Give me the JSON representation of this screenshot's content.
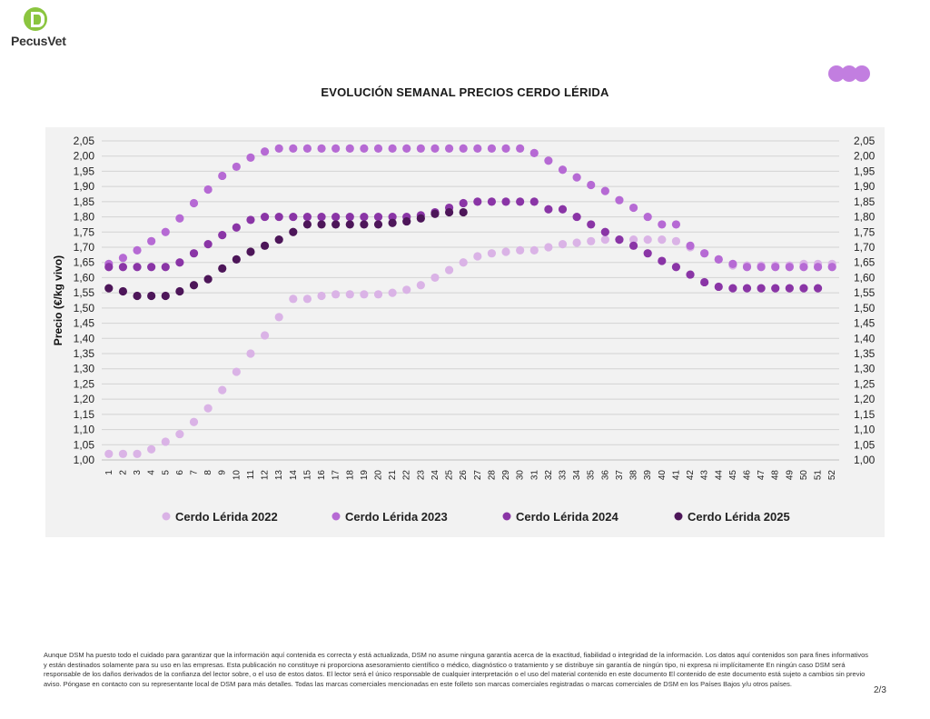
{
  "header": {
    "logo_text": "PecusVet",
    "logo_icon": "pecusvet-logo-icon"
  },
  "colors": {
    "c2022": "#dab3e6",
    "c2023": "#b66ad4",
    "c2024": "#8a35a6",
    "c2025": "#4d1659",
    "decor": "#c27ee0"
  },
  "chart_data": {
    "type": "scatter",
    "title": "EVOLUCIÓN SEMANAL PRECIOS CERDO LÉRIDA",
    "ylabel": "Precio (€/kg vivo)",
    "xlabel": "",
    "ylim": [
      1.0,
      2.05
    ],
    "ytick_step": 0.05,
    "grid": true,
    "legend_position": "bottom",
    "x": [
      1,
      2,
      3,
      4,
      5,
      6,
      7,
      8,
      9,
      10,
      11,
      12,
      13,
      14,
      15,
      16,
      17,
      18,
      19,
      20,
      21,
      22,
      23,
      24,
      25,
      26,
      27,
      28,
      29,
      30,
      31,
      32,
      33,
      34,
      35,
      36,
      37,
      38,
      39,
      40,
      41,
      42,
      43,
      44,
      45,
      46,
      47,
      48,
      49,
      50,
      51,
      52
    ],
    "yticks": [
      "1,00",
      "1,05",
      "1,10",
      "1,15",
      "1,20",
      "1,25",
      "1,30",
      "1,35",
      "1,40",
      "1,45",
      "1,50",
      "1,55",
      "1,60",
      "1,65",
      "1,70",
      "1,75",
      "1,80",
      "1,85",
      "1,90",
      "1,95",
      "2,00",
      "2,05"
    ],
    "xticks": [
      "1",
      "2",
      "3",
      "4",
      "5",
      "6",
      "7",
      "8",
      "9",
      "10",
      "11",
      "12",
      "13",
      "14",
      "15",
      "16",
      "17",
      "18",
      "19",
      "20",
      "21",
      "22",
      "23",
      "24",
      "25",
      "26",
      "27",
      "28",
      "29",
      "30",
      "31",
      "32",
      "33",
      "34",
      "35",
      "36",
      "37",
      "38",
      "39",
      "40",
      "41",
      "42",
      "43",
      "44",
      "45",
      "46",
      "47",
      "48",
      "49",
      "50",
      "51",
      "52"
    ],
    "series": [
      {
        "name": "Cerdo Lérida 2022",
        "values": [
          1.02,
          1.02,
          1.02,
          1.035,
          1.06,
          1.085,
          1.125,
          1.17,
          1.23,
          1.29,
          1.35,
          1.41,
          1.47,
          1.53,
          1.53,
          1.54,
          1.545,
          1.545,
          1.545,
          1.545,
          1.55,
          1.56,
          1.575,
          1.6,
          1.625,
          1.65,
          1.67,
          1.68,
          1.685,
          1.69,
          1.69,
          1.7,
          1.71,
          1.715,
          1.72,
          1.725,
          1.725,
          1.725,
          1.725,
          1.725,
          1.72,
          1.7,
          1.68,
          1.66,
          1.64,
          1.64,
          1.64,
          1.64,
          1.64,
          1.645,
          1.645,
          1.645
        ]
      },
      {
        "name": "Cerdo Lérida 2023",
        "values": [
          1.645,
          1.665,
          1.69,
          1.72,
          1.75,
          1.795,
          1.845,
          1.89,
          1.935,
          1.965,
          1.995,
          2.015,
          2.025,
          2.025,
          2.025,
          2.025,
          2.025,
          2.025,
          2.025,
          2.025,
          2.025,
          2.025,
          2.025,
          2.025,
          2.025,
          2.025,
          2.025,
          2.025,
          2.025,
          2.025,
          2.01,
          1.985,
          1.955,
          1.93,
          1.905,
          1.885,
          1.855,
          1.83,
          1.8,
          1.775,
          1.775,
          1.705,
          1.68,
          1.66,
          1.645,
          1.635,
          1.635,
          1.635,
          1.635,
          1.635,
          1.635,
          1.635
        ]
      },
      {
        "name": "Cerdo Lérida 2024",
        "values": [
          1.635,
          1.635,
          1.635,
          1.635,
          1.635,
          1.65,
          1.68,
          1.71,
          1.74,
          1.765,
          1.79,
          1.8,
          1.8,
          1.8,
          1.8,
          1.8,
          1.8,
          1.8,
          1.8,
          1.8,
          1.8,
          1.8,
          1.805,
          1.815,
          1.83,
          1.845,
          1.85,
          1.85,
          1.85,
          1.85,
          1.85,
          1.825,
          1.825,
          1.8,
          1.775,
          1.75,
          1.725,
          1.705,
          1.68,
          1.655,
          1.635,
          1.61,
          1.585,
          1.57,
          1.565,
          1.565,
          1.565,
          1.565,
          1.565,
          1.565,
          1.565
        ]
      },
      {
        "name": "Cerdo Lérida 2025",
        "values": [
          1.565,
          1.555,
          1.54,
          1.54,
          1.54,
          1.555,
          1.575,
          1.595,
          1.63,
          1.66,
          1.685,
          1.705,
          1.725,
          1.75,
          1.775,
          1.775,
          1.775,
          1.775,
          1.775,
          1.775,
          1.78,
          1.785,
          1.795,
          1.81,
          1.815,
          1.815
        ]
      }
    ]
  },
  "footer": {
    "disclaimer": "Aunque DSM ha puesto todo el cuidado para garantizar que la información aquí contenida es correcta y está actualizada, DSM no asume ninguna garantía acerca de la exactitud, fiabilidad o integridad de la información. Los datos aquí contenidos son para fines informativos y están destinados solamente para su uso en las empresas. Esta publicación no constituye ni proporciona asesoramiento científico o médico, diagnóstico o tratamiento y se distribuye sin garantía de ningún tipo, ni expresa ni implícitamente En ningún caso DSM será responsable de los daños derivados de la confianza del lector sobre, o el uso de estos datos. El lector será el único responsable de cualquier interpretación o el uso del material contenido en este documento El contenido de este documento está sujeto a cambios sin previo aviso. Póngase en contacto con su representante local de DSM para más detalles. Todas las marcas comerciales mencionadas en este folleto son marcas comerciales registradas o marcas comerciales de DSM en los Países Bajos y/u otros países.",
    "page_number": "2/3"
  }
}
